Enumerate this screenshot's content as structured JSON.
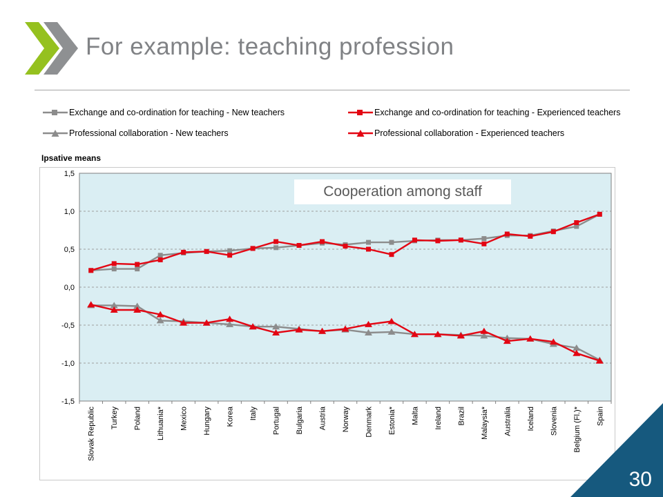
{
  "slide": {
    "title": "For example: teaching profession",
    "page_number": "30",
    "overlay_label": "Cooperation among staff",
    "axis_note": "Ipsative means"
  },
  "colors": {
    "title_gray": "#808285",
    "accent_triangle": "#16597e",
    "plot_background": "#daeef3",
    "grid_line": "#9e9e9e",
    "axis_line": "#7f7f7f",
    "series_gray": "#8c8c8c",
    "series_red": "#e30613",
    "logo_green": "#95c11f",
    "logo_gray": "#8e9092"
  },
  "legend": [
    {
      "label": "Exchange and co-ordination for teaching - New teachers",
      "marker": "square",
      "color": "#8c8c8c"
    },
    {
      "label": "Exchange and co-ordination for teaching - Experienced teachers",
      "marker": "square",
      "color": "#e30613"
    },
    {
      "label": "Professional collaboration - New teachers",
      "marker": "triangle",
      "color": "#8c8c8c"
    },
    {
      "label": "Professional collaboration - Experienced teachers",
      "marker": "triangle",
      "color": "#e30613"
    }
  ],
  "chart_data": {
    "type": "line",
    "title": "Cooperation among staff",
    "xlabel": "",
    "ylabel": "Ipsative means",
    "ylim": [
      -1.5,
      1.5
    ],
    "yticks": [
      1.5,
      1.0,
      0.5,
      0.0,
      -0.5,
      -1.0,
      -1.5
    ],
    "ytick_labels": [
      "1,5",
      "1,0",
      "0,5",
      "0,0",
      "-0,5",
      "-1,0",
      "-1,5"
    ],
    "grid": true,
    "legend_position": "top",
    "categories": [
      "Slovak Republic",
      "Turkey",
      "Poland",
      "Lithuania*",
      "Mexico",
      "Hungary",
      "Korea",
      "Italy",
      "Portugal",
      "Bulgaria",
      "Austria",
      "Norway",
      "Denmark",
      "Estonia*",
      "Malta",
      "Ireland",
      "Brazil",
      "Malaysia*",
      "Australia",
      "Iceland",
      "Slovenia",
      "Belgium (Fl.)*",
      "Spain"
    ],
    "series": [
      {
        "name": "Exchange and co-ordination for teaching - New teachers",
        "marker": "square",
        "color": "#8c8c8c",
        "values": [
          0.22,
          0.24,
          0.24,
          0.42,
          0.45,
          0.47,
          0.48,
          0.51,
          0.52,
          0.55,
          0.58,
          0.56,
          0.59,
          0.59,
          0.61,
          0.62,
          0.62,
          0.64,
          0.68,
          0.68,
          0.74,
          0.8,
          0.96
        ]
      },
      {
        "name": "Exchange and co-ordination for teaching - Experienced teachers",
        "marker": "square",
        "color": "#e30613",
        "values": [
          0.22,
          0.31,
          0.3,
          0.36,
          0.46,
          0.47,
          0.42,
          0.51,
          0.6,
          0.55,
          0.6,
          0.54,
          0.5,
          0.43,
          0.62,
          0.61,
          0.62,
          0.57,
          0.7,
          0.67,
          0.73,
          0.85,
          0.96
        ]
      },
      {
        "name": "Professional collaboration - New teachers",
        "marker": "triangle",
        "color": "#8c8c8c",
        "values": [
          -0.24,
          -0.24,
          -0.25,
          -0.44,
          -0.45,
          -0.47,
          -0.49,
          -0.52,
          -0.52,
          -0.55,
          -0.58,
          -0.56,
          -0.6,
          -0.59,
          -0.62,
          -0.62,
          -0.63,
          -0.64,
          -0.67,
          -0.68,
          -0.75,
          -0.8,
          -0.96
        ]
      },
      {
        "name": "Professional collaboration - Experienced teachers",
        "marker": "triangle",
        "color": "#e30613",
        "values": [
          -0.23,
          -0.3,
          -0.3,
          -0.36,
          -0.47,
          -0.47,
          -0.42,
          -0.52,
          -0.6,
          -0.56,
          -0.58,
          -0.55,
          -0.49,
          -0.45,
          -0.62,
          -0.62,
          -0.64,
          -0.58,
          -0.71,
          -0.68,
          -0.72,
          -0.87,
          -0.97
        ]
      }
    ]
  }
}
